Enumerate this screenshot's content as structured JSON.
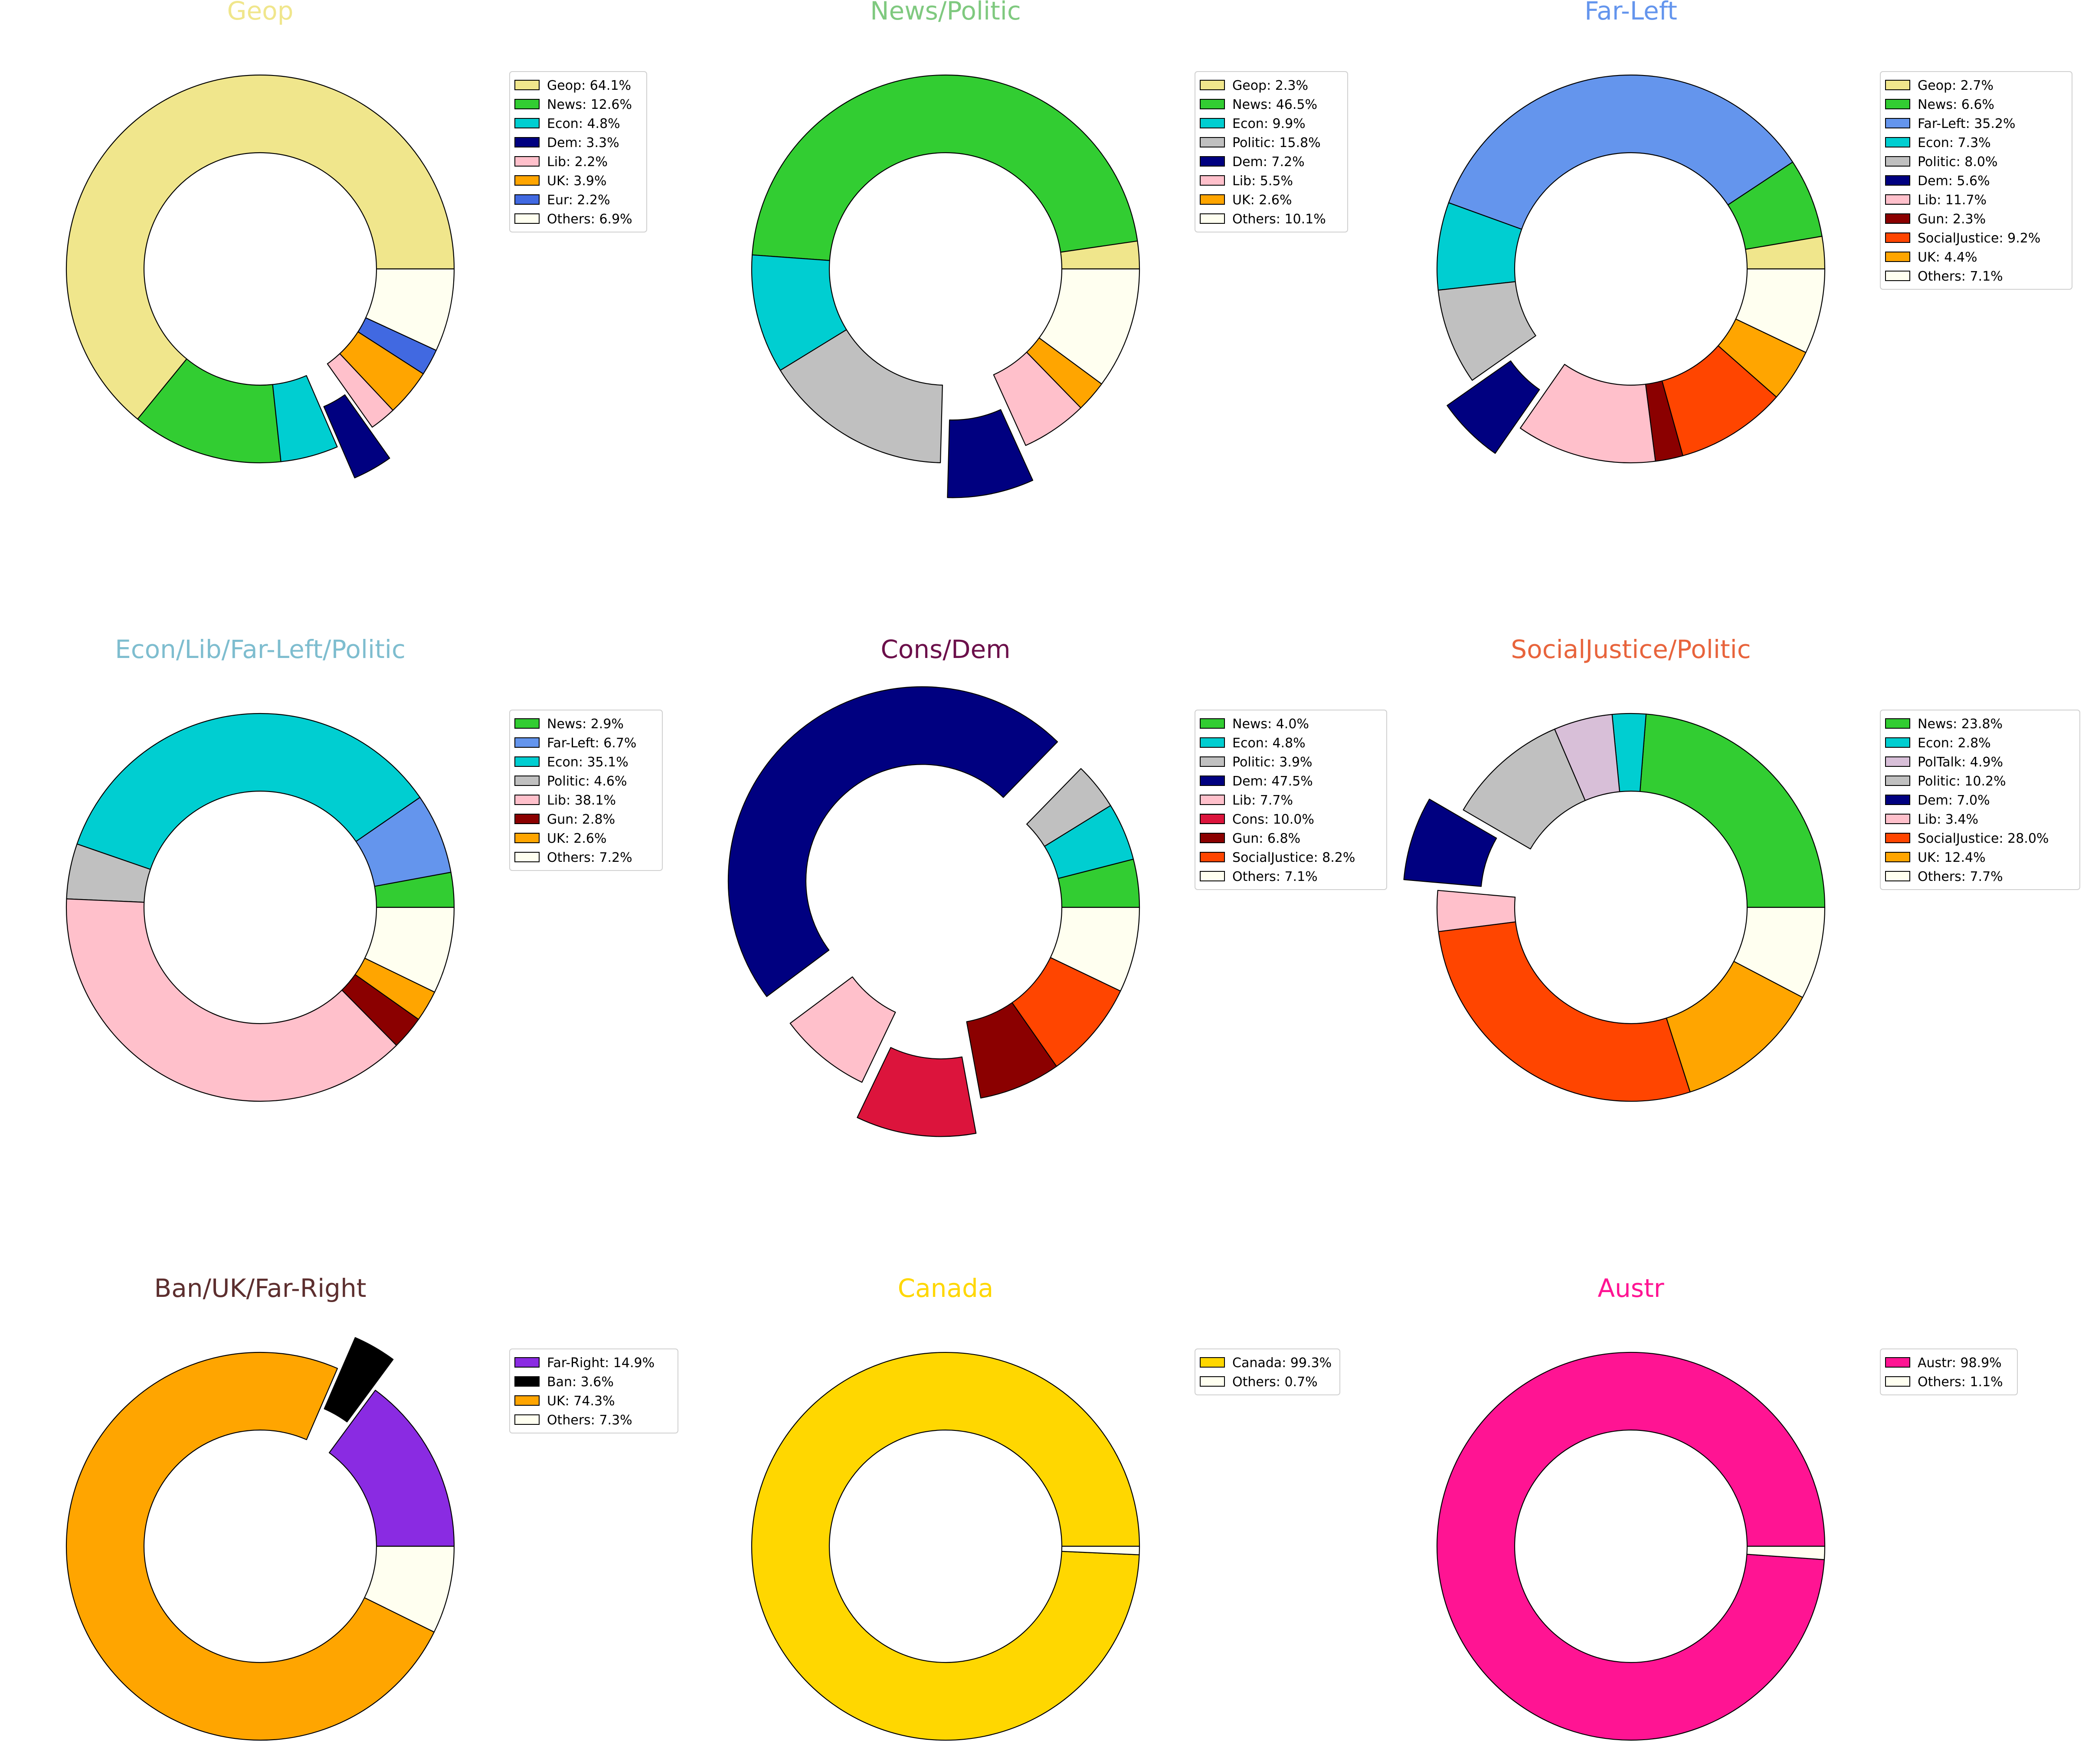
{
  "chart_data": [
    {
      "type": "pie",
      "title": "Geop",
      "title_color": "#f0e68c",
      "legend_position": "right",
      "slices": [
        {
          "label": "Geop",
          "value": 64.1,
          "color": "#f0e68c",
          "legend_text": "Geop: 64.1%",
          "exploded": false
        },
        {
          "label": "News",
          "value": 12.6,
          "color": "#32cd32",
          "legend_text": "News: 12.6%",
          "exploded": false
        },
        {
          "label": "Econ",
          "value": 4.8,
          "color": "#00ced1",
          "legend_text": "Econ: 4.8%",
          "exploded": false
        },
        {
          "label": "Dem",
          "value": 3.3,
          "color": "#000080",
          "legend_text": "Dem: 3.3%",
          "exploded": true
        },
        {
          "label": "Lib",
          "value": 2.2,
          "color": "#ffc0cb",
          "legend_text": "Lib: 2.2%",
          "exploded": false
        },
        {
          "label": "UK",
          "value": 3.9,
          "color": "#ffa500",
          "legend_text": "UK: 3.9%",
          "exploded": false
        },
        {
          "label": "Eur",
          "value": 2.2,
          "color": "#4169e1",
          "legend_text": "Eur: 2.2%",
          "exploded": false
        },
        {
          "label": "Others",
          "value": 6.9,
          "color": "#fffff0",
          "legend_text": "Others: 6.9%",
          "exploded": false
        }
      ]
    },
    {
      "type": "pie",
      "title": "News/Politic",
      "title_color": "#7fc97f",
      "legend_position": "right",
      "slices": [
        {
          "label": "Geop",
          "value": 2.3,
          "color": "#f0e68c",
          "legend_text": "Geop: 2.3%",
          "exploded": false
        },
        {
          "label": "News",
          "value": 46.5,
          "color": "#32cd32",
          "legend_text": "News: 46.5%",
          "exploded": false
        },
        {
          "label": "Econ",
          "value": 9.9,
          "color": "#00ced1",
          "legend_text": "Econ: 9.9%",
          "exploded": false
        },
        {
          "label": "Politic",
          "value": 15.8,
          "color": "#c0c0c0",
          "legend_text": "Politic: 15.8%",
          "exploded": false
        },
        {
          "label": "Dem",
          "value": 7.2,
          "color": "#000080",
          "legend_text": "Dem: 7.2%",
          "exploded": true
        },
        {
          "label": "Lib",
          "value": 5.5,
          "color": "#ffc0cb",
          "legend_text": "Lib: 5.5%",
          "exploded": false
        },
        {
          "label": "UK",
          "value": 2.6,
          "color": "#ffa500",
          "legend_text": "UK: 2.6%",
          "exploded": false
        },
        {
          "label": "Others",
          "value": 10.1,
          "color": "#fffff0",
          "legend_text": "Others: 10.1%",
          "exploded": false
        }
      ]
    },
    {
      "type": "pie",
      "title": "Far-Left",
      "title_color": "#6495ed",
      "legend_position": "right",
      "slices": [
        {
          "label": "Geop",
          "value": 2.7,
          "color": "#f0e68c",
          "legend_text": "Geop: 2.7%",
          "exploded": false
        },
        {
          "label": "News",
          "value": 6.6,
          "color": "#32cd32",
          "legend_text": "News: 6.6%",
          "exploded": false
        },
        {
          "label": "Far-Left",
          "value": 35.2,
          "color": "#6495ed",
          "legend_text": "Far-Left: 35.2%",
          "exploded": false
        },
        {
          "label": "Econ",
          "value": 7.3,
          "color": "#00ced1",
          "legend_text": "Econ: 7.3%",
          "exploded": false
        },
        {
          "label": "Politic",
          "value": 8.0,
          "color": "#c0c0c0",
          "legend_text": "Politic: 8.0%",
          "exploded": false
        },
        {
          "label": "Dem",
          "value": 5.6,
          "color": "#000080",
          "legend_text": "Dem: 5.6%",
          "exploded": true
        },
        {
          "label": "Lib",
          "value": 11.7,
          "color": "#ffc0cb",
          "legend_text": "Lib: 11.7%",
          "exploded": false
        },
        {
          "label": "Gun",
          "value": 2.3,
          "color": "#8b0000",
          "legend_text": "Gun: 2.3%",
          "exploded": false
        },
        {
          "label": "SocialJustice",
          "value": 9.2,
          "color": "#ff4500",
          "legend_text": "SocialJustice: 9.2%",
          "exploded": false
        },
        {
          "label": "UK",
          "value": 4.4,
          "color": "#ffa500",
          "legend_text": "UK: 4.4%",
          "exploded": false
        },
        {
          "label": "Others",
          "value": 7.1,
          "color": "#fffff0",
          "legend_text": "Others: 7.1%",
          "exploded": false
        }
      ]
    },
    {
      "type": "pie",
      "title": "Econ/Lib/Far-Left/Politic",
      "title_color": "#7ebdcf",
      "legend_position": "right",
      "slices": [
        {
          "label": "News",
          "value": 2.9,
          "color": "#32cd32",
          "legend_text": "News: 2.9%",
          "exploded": false
        },
        {
          "label": "Far-Left",
          "value": 6.7,
          "color": "#6495ed",
          "legend_text": "Far-Left: 6.7%",
          "exploded": false
        },
        {
          "label": "Econ",
          "value": 35.1,
          "color": "#00ced1",
          "legend_text": "Econ: 35.1%",
          "exploded": false
        },
        {
          "label": "Politic",
          "value": 4.6,
          "color": "#c0c0c0",
          "legend_text": "Politic: 4.6%",
          "exploded": false
        },
        {
          "label": "Lib",
          "value": 38.1,
          "color": "#ffc0cb",
          "legend_text": "Lib: 38.1%",
          "exploded": false
        },
        {
          "label": "Gun",
          "value": 2.8,
          "color": "#8b0000",
          "legend_text": "Gun: 2.8%",
          "exploded": false
        },
        {
          "label": "UK",
          "value": 2.6,
          "color": "#ffa500",
          "legend_text": "UK: 2.6%",
          "exploded": false
        },
        {
          "label": "Others",
          "value": 7.2,
          "color": "#fffff0",
          "legend_text": "Others: 7.2%",
          "exploded": false
        }
      ]
    },
    {
      "type": "pie",
      "title": "Cons/Dem",
      "title_color": "#6b0f4a",
      "legend_position": "right",
      "slices": [
        {
          "label": "News",
          "value": 4.0,
          "color": "#32cd32",
          "legend_text": "News: 4.0%",
          "exploded": false
        },
        {
          "label": "Econ",
          "value": 4.8,
          "color": "#00ced1",
          "legend_text": "Econ: 4.8%",
          "exploded": false
        },
        {
          "label": "Politic",
          "value": 3.9,
          "color": "#c0c0c0",
          "legend_text": "Politic: 3.9%",
          "exploded": false
        },
        {
          "label": "Dem",
          "value": 47.5,
          "color": "#000080",
          "legend_text": "Dem: 47.5%",
          "exploded": true
        },
        {
          "label": "Lib",
          "value": 7.7,
          "color": "#ffc0cb",
          "legend_text": "Lib: 7.7%",
          "exploded": false
        },
        {
          "label": "Cons",
          "value": 10.0,
          "color": "#dc143c",
          "legend_text": "Cons: 10.0%",
          "exploded": true
        },
        {
          "label": "Gun",
          "value": 6.8,
          "color": "#8b0000",
          "legend_text": "Gun: 6.8%",
          "exploded": false
        },
        {
          "label": "SocialJustice",
          "value": 8.2,
          "color": "#ff4500",
          "legend_text": "SocialJustice: 8.2%",
          "exploded": false
        },
        {
          "label": "Others",
          "value": 7.1,
          "color": "#fffff0",
          "legend_text": "Others: 7.1%",
          "exploded": false
        }
      ]
    },
    {
      "type": "pie",
      "title": "SocialJustice/Politic",
      "title_color": "#e8643c",
      "legend_position": "right",
      "slices": [
        {
          "label": "News",
          "value": 23.8,
          "color": "#32cd32",
          "legend_text": "News: 23.8%",
          "exploded": false
        },
        {
          "label": "Econ",
          "value": 2.8,
          "color": "#00ced1",
          "legend_text": "Econ: 2.8%",
          "exploded": false
        },
        {
          "label": "PolTalk",
          "value": 4.9,
          "color": "#d8bfd8",
          "legend_text": "PolTalk: 4.9%",
          "exploded": false
        },
        {
          "label": "Politic",
          "value": 10.2,
          "color": "#c0c0c0",
          "legend_text": "Politic: 10.2%",
          "exploded": false
        },
        {
          "label": "Dem",
          "value": 7.0,
          "color": "#000080",
          "legend_text": "Dem: 7.0%",
          "exploded": true
        },
        {
          "label": "Lib",
          "value": 3.4,
          "color": "#ffc0cb",
          "legend_text": "Lib: 3.4%",
          "exploded": false
        },
        {
          "label": "SocialJustice",
          "value": 28.0,
          "color": "#ff4500",
          "legend_text": "SocialJustice: 28.0%",
          "exploded": false
        },
        {
          "label": "UK",
          "value": 12.4,
          "color": "#ffa500",
          "legend_text": "UK: 12.4%",
          "exploded": false
        },
        {
          "label": "Others",
          "value": 7.7,
          "color": "#fffff0",
          "legend_text": "Others: 7.7%",
          "exploded": false
        }
      ]
    },
    {
      "type": "pie",
      "title": "Ban/UK/Far-Right",
      "title_color": "#5c2e2e",
      "legend_position": "right",
      "slices": [
        {
          "label": "Far-Right",
          "value": 14.9,
          "color": "#8a2be2",
          "legend_text": "Far-Right: 14.9%",
          "exploded": false
        },
        {
          "label": "Ban",
          "value": 3.6,
          "color": "#000000",
          "legend_text": "Ban: 3.6%",
          "exploded": true
        },
        {
          "label": "UK",
          "value": 74.3,
          "color": "#ffa500",
          "legend_text": "UK: 74.3%",
          "exploded": false
        },
        {
          "label": "Others",
          "value": 7.3,
          "color": "#fffff0",
          "legend_text": "Others: 7.3%",
          "exploded": false
        }
      ]
    },
    {
      "type": "pie",
      "title": "Canada",
      "title_color": "#ffd700",
      "legend_position": "right",
      "slices": [
        {
          "label": "Canada",
          "value": 99.3,
          "color": "#ffd700",
          "legend_text": "Canada: 99.3%",
          "exploded": false
        },
        {
          "label": "Others",
          "value": 0.7,
          "color": "#fffff0",
          "legend_text": "Others: 0.7%",
          "exploded": false
        }
      ]
    },
    {
      "type": "pie",
      "title": "Austr",
      "title_color": "#ff1493",
      "legend_position": "right",
      "slices": [
        {
          "label": "Austr",
          "value": 98.9,
          "color": "#ff1493",
          "legend_text": "Austr: 98.9%",
          "exploded": false
        },
        {
          "label": "Others",
          "value": 1.1,
          "color": "#fffff0",
          "legend_text": "Others: 1.1%",
          "exploded": false
        }
      ]
    }
  ]
}
